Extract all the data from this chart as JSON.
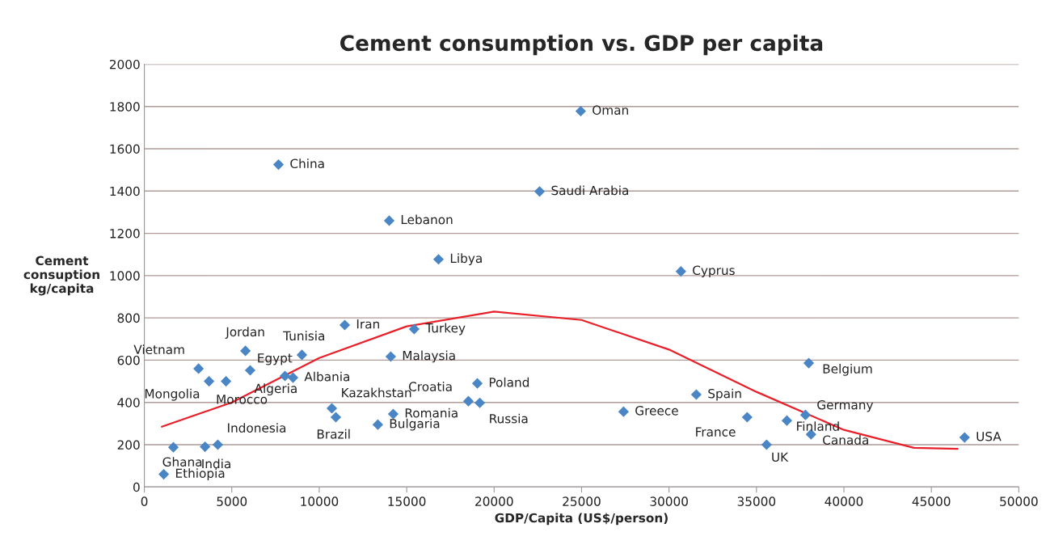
{
  "chart_data": {
    "type": "scatter",
    "title": "Cement consumption vs. GDP per capita",
    "xlabel": "GDP/Capita (US$/person)",
    "ylabel": "Cement\nconsuption\nkg/capita",
    "xlim": [
      0,
      50000
    ],
    "xticks": [
      0,
      5000,
      10000,
      15000,
      20000,
      25000,
      30000,
      35000,
      40000,
      45000,
      50000
    ],
    "ylim": [
      0,
      2000
    ],
    "yticks": [
      0,
      200,
      400,
      600,
      800,
      1000,
      1200,
      1400,
      1600,
      1800,
      2000
    ],
    "grid": "y",
    "legend": false,
    "marker": "diamond",
    "series": [
      {
        "color": "#4a86c5",
        "x": [
          1110,
          1660,
          3470,
          4200,
          3100,
          3700,
          4670,
          5780,
          6050,
          8040,
          8500,
          9010,
          11460,
          10720,
          10950,
          13350,
          14230,
          14090,
          15430,
          14000,
          16820,
          7670,
          22600,
          24950,
          30680,
          18530,
          19040,
          19180,
          27400,
          31560,
          34470,
          35580,
          36740,
          37800,
          37990,
          38120,
          46900
        ],
        "values": [
          60,
          188,
          190,
          200,
          560,
          500,
          500,
          644,
          552,
          525,
          517,
          625,
          766,
          372,
          330,
          295,
          345,
          617,
          747,
          1260,
          1077,
          1525,
          1398,
          1778,
          1020,
          406,
          490,
          398,
          356,
          437,
          330,
          200,
          314,
          341,
          586,
          249,
          234
        ]
      },
      {
        "type": "line",
        "color": "#e8202a",
        "marker": "none",
        "line_style": "solid",
        "x": [
          1000,
          5000,
          10000,
          15000,
          20000,
          25000,
          30000,
          35000,
          40000,
          44000,
          46500
        ],
        "values": [
          285,
          400,
          610,
          760,
          830,
          790,
          650,
          450,
          270,
          185,
          180
        ]
      }
    ],
    "annotations": [
      {
        "text": "Ethiopia",
        "x": 1110,
        "y": 60
      },
      {
        "text": "Ghana",
        "x": 1660,
        "y": 188
      },
      {
        "text": "India",
        "x": 3470,
        "y": 190
      },
      {
        "text": "Indonesia",
        "x": 4200,
        "y": 200
      },
      {
        "text": "Vietnam",
        "x": 3100,
        "y": 560
      },
      {
        "text": "Mongolia",
        "x": 3700,
        "y": 500
      },
      {
        "text": "Morocco",
        "x": 4670,
        "y": 500
      },
      {
        "text": "Jordan",
        "x": 5780,
        "y": 644
      },
      {
        "text": "Egypt",
        "x": 6050,
        "y": 552
      },
      {
        "text": "Algeria",
        "x": 8040,
        "y": 525
      },
      {
        "text": "Albania",
        "x": 8500,
        "y": 517
      },
      {
        "text": "Tunisia",
        "x": 9010,
        "y": 625
      },
      {
        "text": "Iran",
        "x": 11460,
        "y": 766
      },
      {
        "text": "Kazakhstan",
        "x": 10720,
        "y": 372
      },
      {
        "text": "Brazil",
        "x": 10950,
        "y": 330
      },
      {
        "text": "Bulgaria",
        "x": 13350,
        "y": 295
      },
      {
        "text": "Romania",
        "x": 14230,
        "y": 345
      },
      {
        "text": "Malaysia",
        "x": 14090,
        "y": 617
      },
      {
        "text": "Turkey",
        "x": 15430,
        "y": 747
      },
      {
        "text": "Lebanon",
        "x": 14000,
        "y": 1260
      },
      {
        "text": "Libya",
        "x": 16820,
        "y": 1077
      },
      {
        "text": "China",
        "x": 7670,
        "y": 1525
      },
      {
        "text": "Saudi Arabia",
        "x": 22600,
        "y": 1398
      },
      {
        "text": "Oman",
        "x": 24950,
        "y": 1778
      },
      {
        "text": "Cyprus",
        "x": 30680,
        "y": 1020
      },
      {
        "text": "Croatia",
        "x": 18530,
        "y": 406
      },
      {
        "text": "Poland",
        "x": 19040,
        "y": 490
      },
      {
        "text": "Russia",
        "x": 19180,
        "y": 398
      },
      {
        "text": "Greece",
        "x": 27400,
        "y": 356
      },
      {
        "text": "Spain",
        "x": 31560,
        "y": 437
      },
      {
        "text": "France",
        "x": 34470,
        "y": 330
      },
      {
        "text": "UK",
        "x": 35580,
        "y": 200
      },
      {
        "text": "Finland",
        "x": 36740,
        "y": 314
      },
      {
        "text": "Germany",
        "x": 37800,
        "y": 341
      },
      {
        "text": "Belgium",
        "x": 37990,
        "y": 586
      },
      {
        "text": "Canada",
        "x": 38120,
        "y": 249
      },
      {
        "text": "USA",
        "x": 46900,
        "y": 234
      }
    ]
  }
}
